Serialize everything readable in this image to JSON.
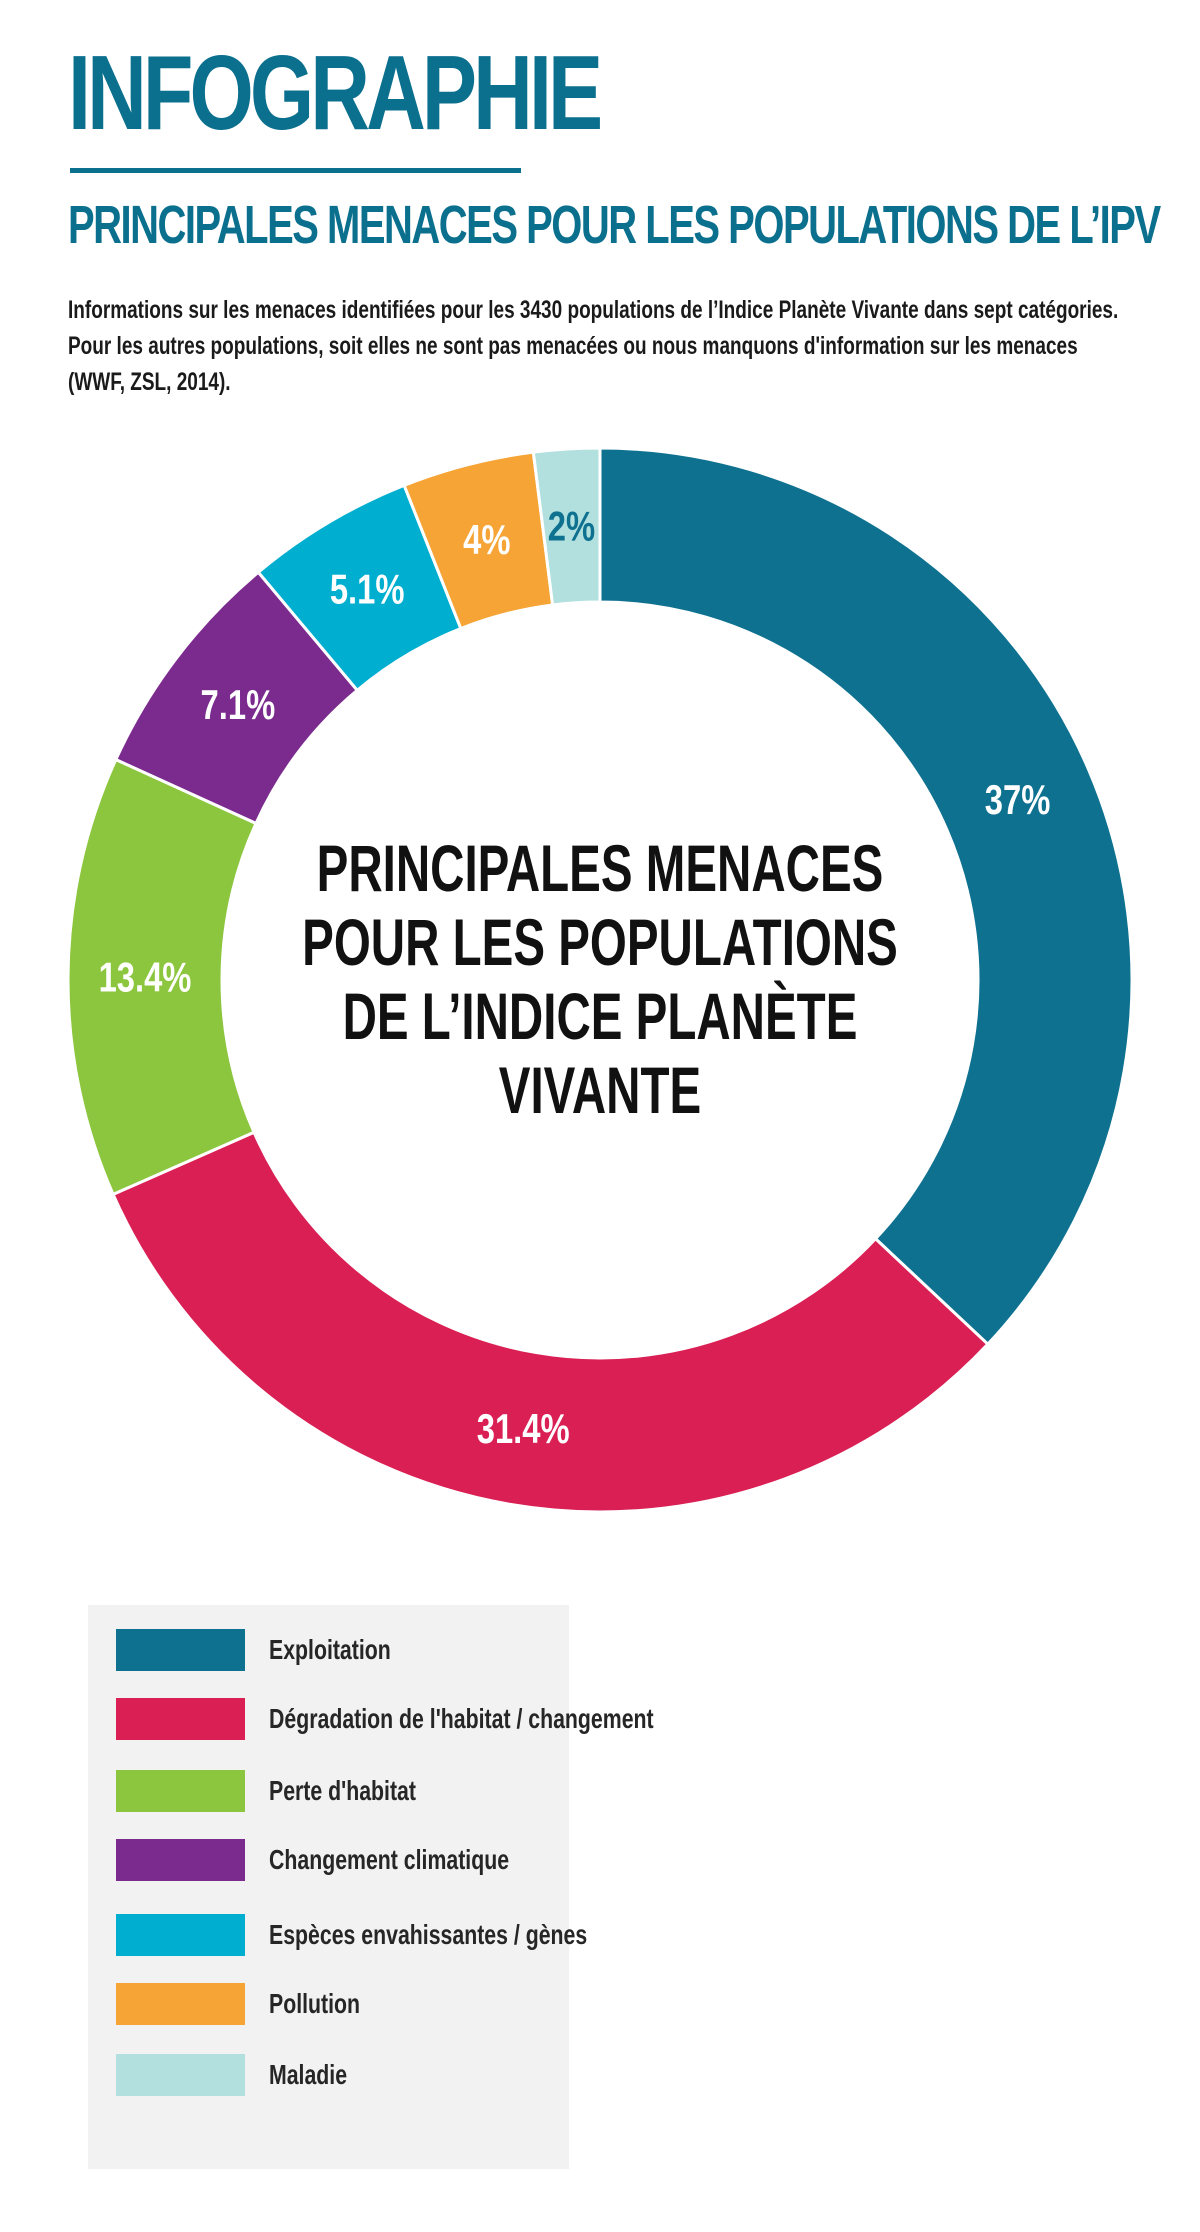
{
  "header": {
    "brand": "INFOGRAPHIE",
    "subtitle": "PRINCIPALES MENACES POUR LES POPULATIONS DE L’IPV",
    "description_lines": [
      "Informations sur les menaces identifiées pour les 3430 populations de l’Indice Planète Vivante dans sept catégories.",
      "Pour les autres populations, soit elles ne sont pas menacées ou nous manquons d'information sur les menaces",
      "(WWF, ZSL, 2014)."
    ]
  },
  "colors": {
    "accent": "#0b6f8e",
    "exploitation": "#0e7190",
    "degradation": "#d91f54",
    "perte": "#8cc63f",
    "climat": "#7b2a8e",
    "especes": "#00aed0",
    "pollution": "#f6a436",
    "maladie": "#b1e0df"
  },
  "chart_data": {
    "type": "pie",
    "donut": true,
    "center_title_lines": [
      "PRINCIPALES MENACES",
      "POUR LES POPULATIONS",
      "DE L’INDICE PLANÈTE",
      "VIVANTE"
    ],
    "categories": [
      "Exploitation",
      "Dégradation de l'habitat / changement",
      "Perte d'habitat",
      "Changement climatique",
      "Espèces envahissantes / gènes",
      "Pollution",
      "Maladie"
    ],
    "values": [
      37,
      31.4,
      13.4,
      7.1,
      5.1,
      4,
      2
    ],
    "labels": [
      "37%",
      "31.4%",
      "13.4%",
      "7.1%",
      "5.1%",
      "4%",
      "2%"
    ],
    "colors": [
      "#0e7190",
      "#d91f54",
      "#8cc63f",
      "#7b2a8e",
      "#00aed0",
      "#f6a436",
      "#b1e0df"
    ],
    "label_colors": [
      "#ffffff",
      "#ffffff",
      "#ffffff",
      "#ffffff",
      "#ffffff",
      "#ffffff",
      "#0e7190"
    ],
    "start_angle_deg": 0,
    "direction": "clockwise",
    "legend_position": "bottom-left"
  }
}
